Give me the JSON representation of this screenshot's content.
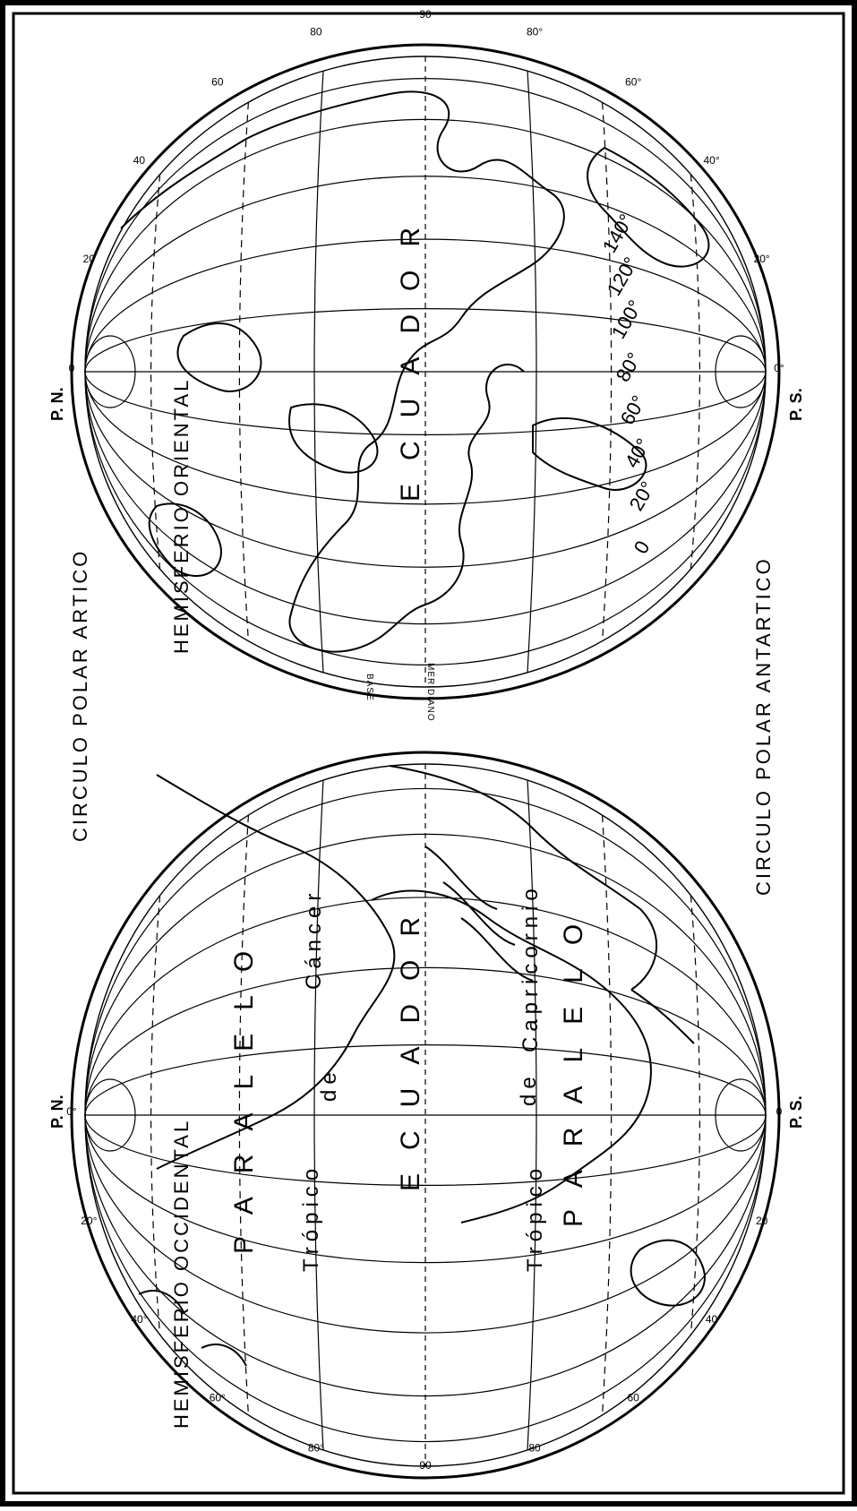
{
  "map": {
    "title_east": "HEMISFERIO ORIENTAL",
    "title_west": "HEMISFERIO OCCIDENTAL",
    "arctic_circle": "CIRCULO POLAR ARTICO",
    "antarctic_circle": "CIRCULO POLAR ANTARTICO",
    "pole_north": "P. N.",
    "pole_south": "P. S.",
    "equator": "ECUADOR",
    "parallel": "PARALELO",
    "tropic_cancer": [
      "Trópico",
      "de",
      "Cáncer"
    ],
    "tropic_capricorn": [
      "Trópico",
      "de",
      "Capricornio"
    ],
    "base_meridian": [
      "MERIDIANO",
      "BASE"
    ],
    "degree_labels": [
      "0",
      "20",
      "40",
      "60",
      "80",
      "90",
      "80°",
      "60°",
      "40°",
      "20°",
      "0°"
    ],
    "longitude_scale": [
      "0",
      "20°",
      "40°",
      "60°",
      "80°",
      "100°",
      "120°",
      "140°"
    ]
  },
  "colors": {
    "ink": "#000000",
    "paper": "#ffffff"
  }
}
